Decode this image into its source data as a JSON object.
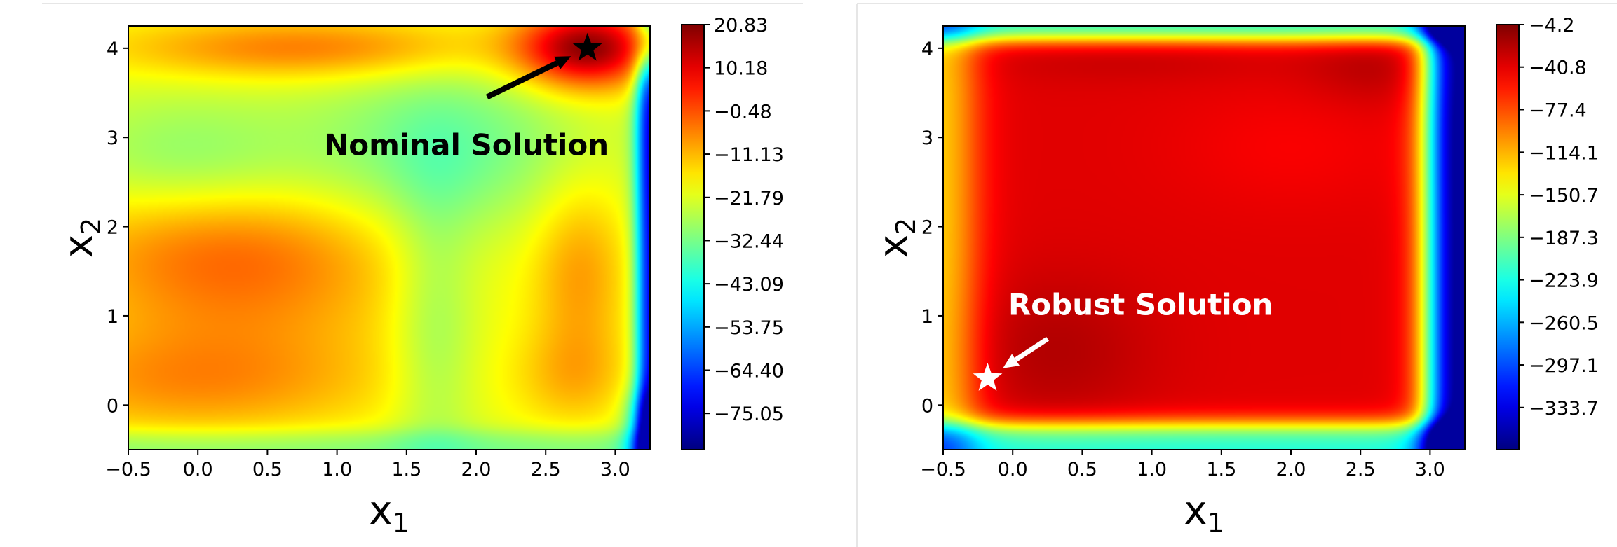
{
  "chart_data": [
    {
      "type": "heatmap",
      "title": "",
      "xlabel": "x",
      "xlabel_sub": "1",
      "ylabel": "x",
      "ylabel_sub": "2",
      "xlim": [
        -0.5,
        3.25
      ],
      "ylim": [
        -0.5,
        4.25
      ],
      "xticks": [
        -0.5,
        0.0,
        0.5,
        1.0,
        1.5,
        2.0,
        2.5,
        3.0
      ],
      "xtick_labels": [
        "−0.5",
        "0.0",
        "0.5",
        "1.0",
        "1.5",
        "2.0",
        "2.5",
        "3.0"
      ],
      "yticks": [
        0,
        1,
        2,
        3,
        4
      ],
      "ytick_labels": [
        "0",
        "1",
        "2",
        "3",
        "4"
      ],
      "colormap": "jet",
      "colorbar": {
        "min": -84.0,
        "max": 20.83,
        "ticks": [
          20.83,
          10.18,
          -0.48,
          -11.13,
          -21.79,
          -32.44,
          -43.09,
          -53.75,
          -64.4,
          -75.05
        ],
        "tick_labels": [
          "20.83",
          "10.18",
          "−0.48",
          "−11.13",
          "−21.79",
          "−32.44",
          "−43.09",
          "−53.75",
          "−64.40",
          "−75.05"
        ]
      },
      "annotation": {
        "text": "Nominal Solution",
        "marker": "star",
        "point": [
          2.8,
          4.0
        ],
        "text_anchor": [
          1.6,
          3.5
        ],
        "color": "#000000"
      },
      "grid": false
    },
    {
      "type": "heatmap",
      "title": "",
      "xlabel": "x",
      "xlabel_sub": "1",
      "ylabel": "x",
      "ylabel_sub": "2",
      "xlim": [
        -0.5,
        3.25
      ],
      "ylim": [
        -0.5,
        4.25
      ],
      "xticks": [
        -0.5,
        0.0,
        0.5,
        1.0,
        1.5,
        2.0,
        2.5,
        3.0
      ],
      "xtick_labels": [
        "−0.5",
        "0.0",
        "0.5",
        "1.0",
        "1.5",
        "2.0",
        "2.5",
        "3.0"
      ],
      "yticks": [
        0,
        1,
        2,
        3,
        4
      ],
      "ytick_labels": [
        "0",
        "1",
        "2",
        "3",
        "4"
      ],
      "colormap": "jet",
      "colorbar": {
        "min": -370.0,
        "max": -4.2,
        "ticks": [
          -4.2,
          -40.8,
          -77.4,
          -114.1,
          -150.7,
          -187.3,
          -223.9,
          -260.5,
          -297.1,
          -333.7
        ],
        "tick_labels": [
          "−4.2",
          "−40.8",
          "−77.4",
          "−114.1",
          "−150.7",
          "−187.3",
          "−223.9",
          "−260.5",
          "−297.1",
          "−333.7"
        ]
      },
      "annotation": {
        "text": "Robust Solution",
        "marker": "star",
        "point": [
          -0.18,
          0.3
        ],
        "text_anchor": [
          0.1,
          0.75
        ],
        "color": "#ffffff"
      },
      "grid": false
    }
  ]
}
